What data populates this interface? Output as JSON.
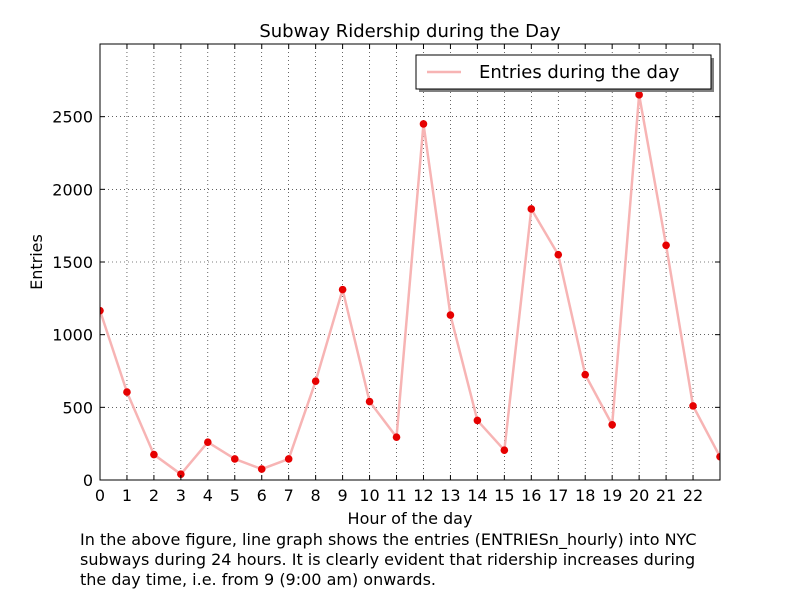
{
  "chart_data": {
    "type": "line",
    "title": "Subway Ridership during the Day",
    "xlabel": "Hour of the day",
    "ylabel": "Entries",
    "x": [
      0,
      1,
      2,
      3,
      4,
      5,
      6,
      7,
      8,
      9,
      10,
      11,
      12,
      13,
      14,
      15,
      16,
      17,
      18,
      19,
      20,
      21,
      22,
      23
    ],
    "xticks": [
      0,
      1,
      2,
      3,
      4,
      5,
      6,
      7,
      8,
      9,
      10,
      11,
      12,
      13,
      14,
      15,
      16,
      17,
      18,
      19,
      20,
      21,
      22
    ],
    "yticks": [
      0,
      500,
      1000,
      1500,
      2000,
      2500
    ],
    "xlim": [
      0,
      23
    ],
    "ylim": [
      0,
      3000
    ],
    "grid": true,
    "legend_position": "top-right",
    "series": [
      {
        "name": "Entries during the day",
        "values": [
          1165,
          605,
          175,
          40,
          260,
          145,
          75,
          145,
          680,
          1310,
          540,
          295,
          2450,
          1135,
          410,
          205,
          1865,
          1550,
          725,
          380,
          2650,
          1615,
          510,
          160
        ],
        "line_color": "#f7b4b4",
        "marker_color": "#e60000"
      }
    ]
  },
  "caption": {
    "lines": [
      "In the above figure, line graph shows the entries (ENTRIESn_hourly) into NYC",
      "subways during 24 hours. It is clearly evident that ridership increases during",
      "the day time, i.e. from 9 (9:00 am) onwards."
    ]
  }
}
